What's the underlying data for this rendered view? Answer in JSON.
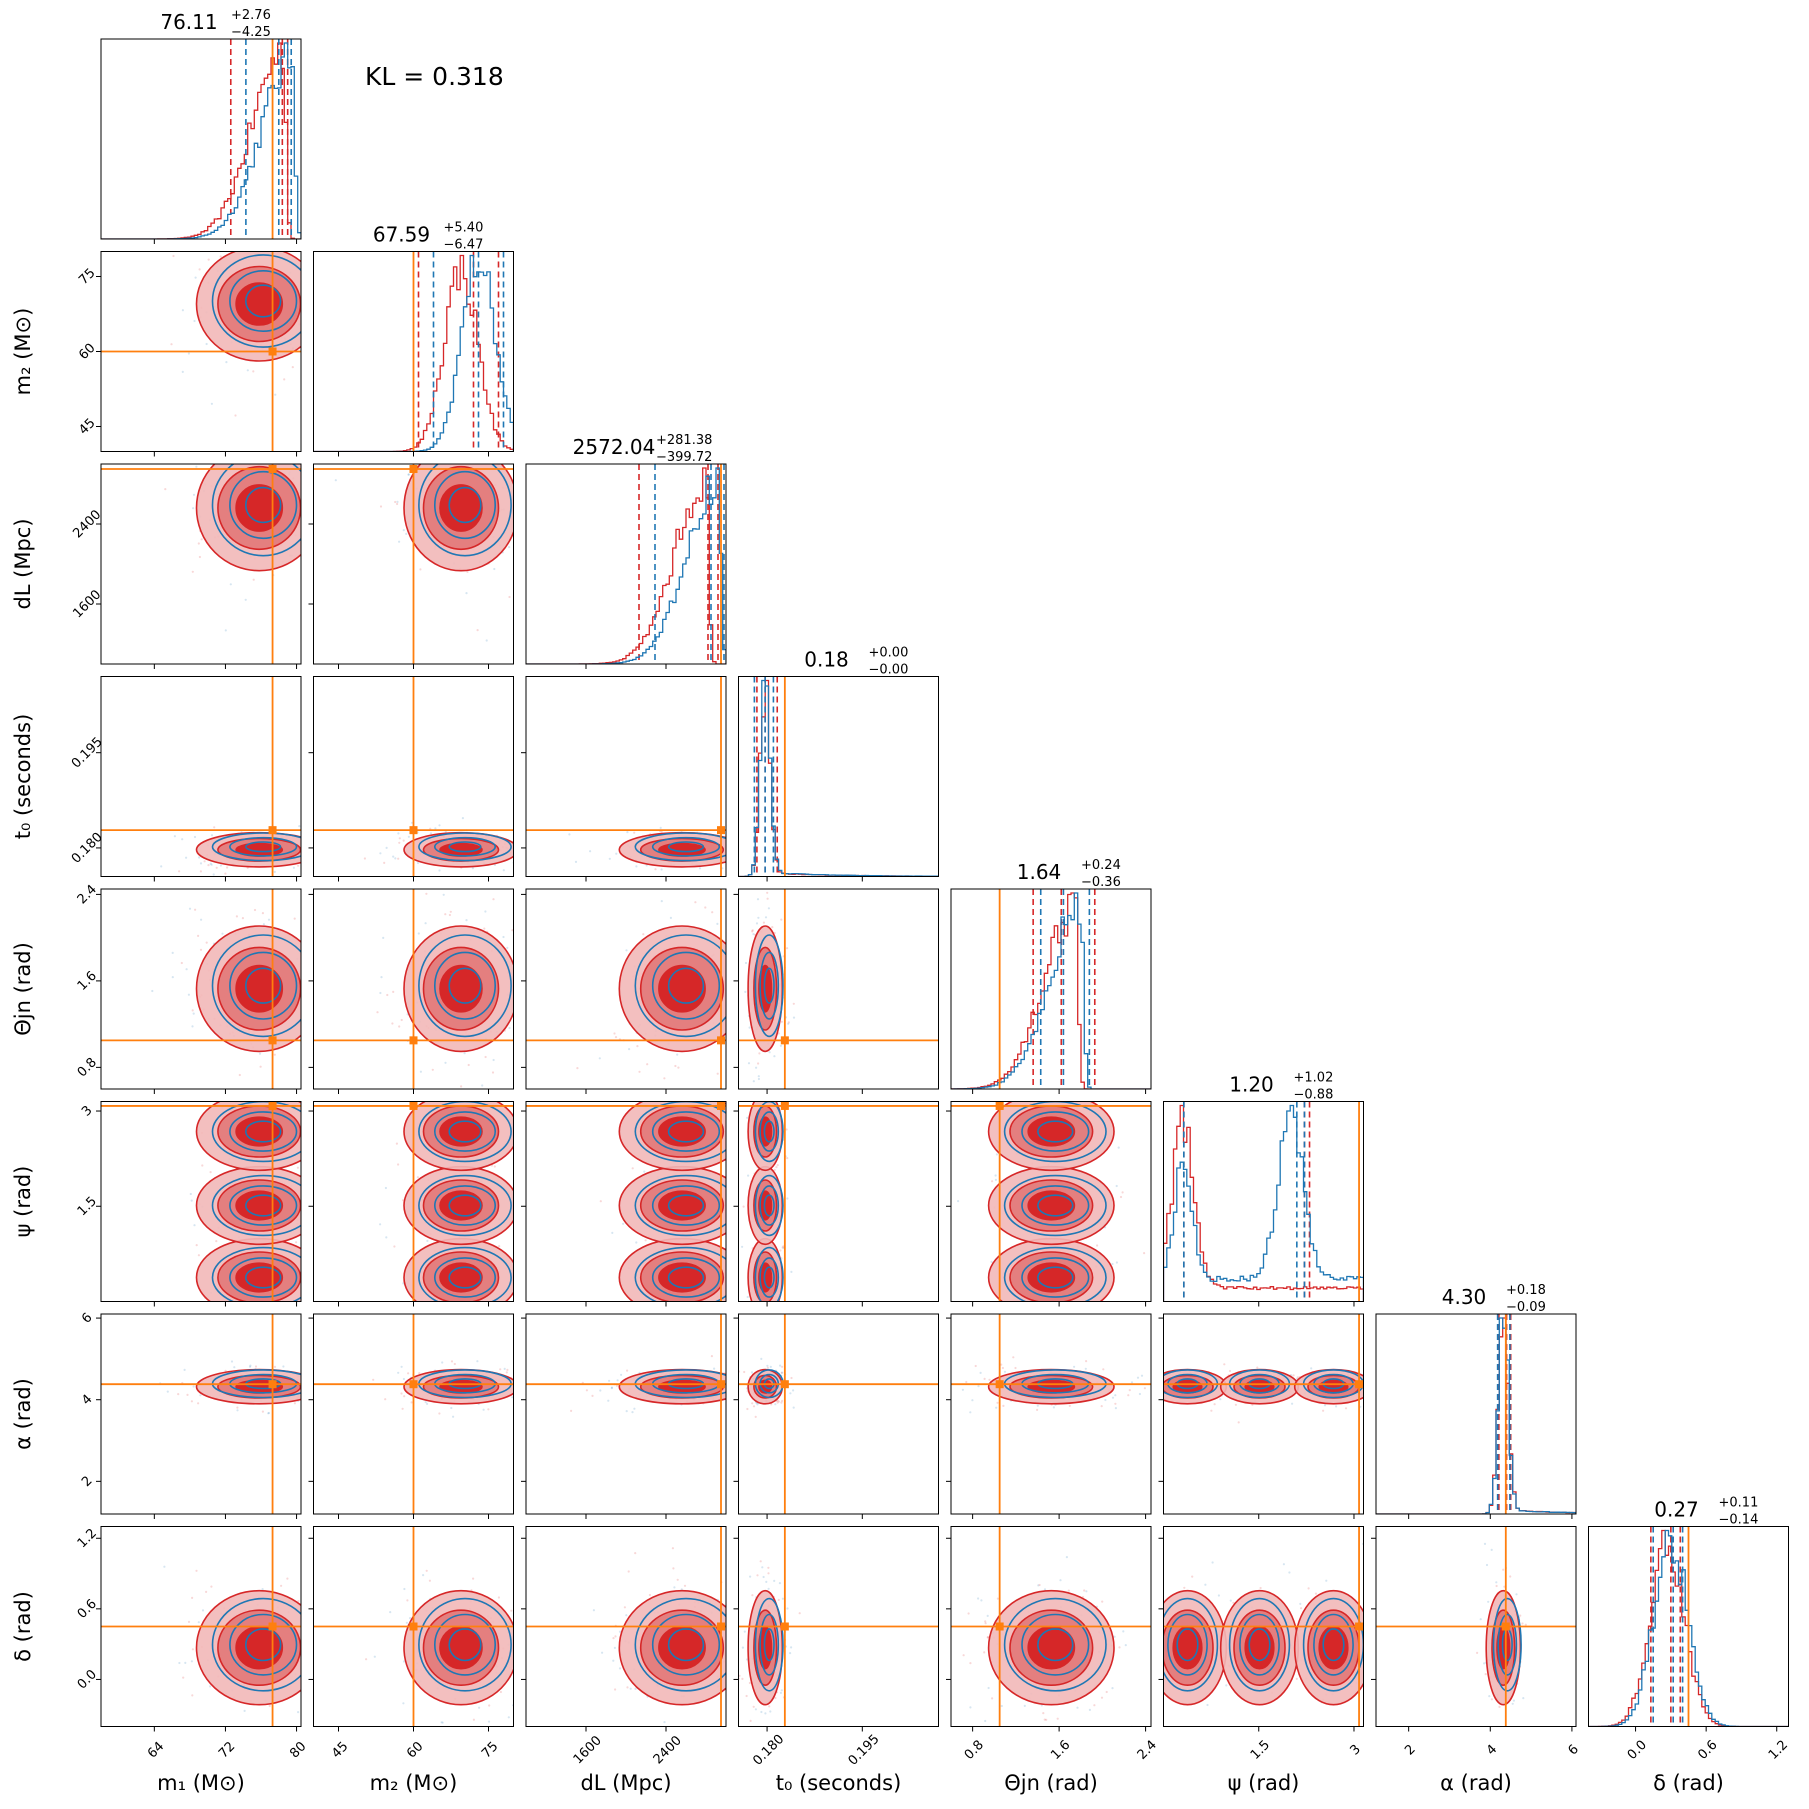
{
  "kl_text": "KL = 0.318",
  "chart_data": {
    "type": "corner",
    "colors": {
      "blue": "#1f77b4",
      "red": "#d62728",
      "truth": "#ff7f0e"
    },
    "parameters": [
      {
        "key": "m1",
        "label": "m_1 (M⊙)",
        "axis_label": "m₁ (M⊙)",
        "range": [
          58,
          80.5
        ],
        "ticks": [
          64,
          72,
          80
        ],
        "truth": 77.3,
        "title": {
          "median": "76.11",
          "plus": "+2.76",
          "minus": "−4.25"
        },
        "quantiles": {
          "red": [
            72.6,
            78.4,
            79.0
          ],
          "blue": [
            74.3,
            78.0,
            79.4
          ]
        },
        "peak_red": 78.5,
        "peak_blue": 79.5,
        "skew": "left"
      },
      {
        "key": "m2",
        "label": "m_2 (M⊙)",
        "axis_label": "m₂ (M⊙)",
        "range": [
          40,
          80
        ],
        "ticks": [
          45,
          60,
          75
        ],
        "truth": 60,
        "title": {
          "median": "67.59",
          "plus": "+5.40",
          "minus": "−6.47"
        },
        "quantiles": {
          "red": [
            61.0,
            72.0,
            77.0
          ],
          "blue": [
            64.0,
            73.0,
            78.0
          ]
        },
        "peak_red": 69.5,
        "peak_blue": 73.0,
        "skew": "mid"
      },
      {
        "key": "dL",
        "label": "d_L (Mpc)",
        "axis_label": "dL (Mpc)",
        "range": [
          1000,
          3000
        ],
        "ticks": [
          1600,
          2400
        ],
        "truth": 2950,
        "title": {
          "median": "2572.04",
          "plus": "+281.38",
          "minus": "−399.72"
        },
        "quantiles": {
          "red": [
            2130,
            2820,
            2920
          ],
          "blue": [
            2290,
            2850,
            2980
          ]
        },
        "peak_red": 2800,
        "peak_blue": 2920,
        "skew": "left"
      },
      {
        "key": "t0",
        "label": "t_0 (seconds)",
        "axis_label": "t₀ (seconds)",
        "range": [
          0.1755,
          0.207
        ],
        "ticks": [
          0.18,
          0.195
        ],
        "tick_labels": [
          "0.180",
          "0.195"
        ],
        "truth": 0.1828,
        "title": {
          "median": "0.18",
          "plus": "+0.00",
          "minus": "−0.00"
        },
        "quantiles": {
          "red": [
            0.1784,
            0.1797,
            0.1816
          ],
          "blue": [
            0.178,
            0.1797,
            0.181
          ]
        },
        "peak_red": 0.1797,
        "peak_blue": 0.1797,
        "skew": "narrow"
      },
      {
        "key": "theta_jn",
        "label": "Θ_jn (rad)",
        "axis_label": "Θjn (rad)",
        "range": [
          0.6,
          2.45
        ],
        "ticks": [
          0.8,
          1.6,
          2.4
        ],
        "truth": 1.05,
        "title": {
          "median": "1.64",
          "plus": "+0.24",
          "minus": "−0.36"
        },
        "quantiles": {
          "red": [
            1.36,
            1.62,
            1.93
          ],
          "blue": [
            1.43,
            1.64,
            1.88
          ]
        },
        "peak_red": 1.75,
        "peak_blue": 1.8,
        "skew": "left"
      },
      {
        "key": "psi",
        "label": "ψ (rad)",
        "axis_label": "ψ (rad)",
        "range": [
          0.0,
          3.15
        ],
        "ticks": [
          1.5,
          3.0
        ],
        "truth": 3.08,
        "title": {
          "median": "1.20",
          "plus": "+1.02",
          "minus": "−0.88"
        },
        "quantiles": {
          "red": [
            0.32,
            2.22,
            2.3
          ],
          "blue": [
            0.32,
            2.1,
            2.22
          ]
        },
        "peak_red": 0.3,
        "peak_blue": 2.0,
        "skew": "bimodal"
      },
      {
        "key": "alpha",
        "label": "α (rad)",
        "axis_label": "α (rad)",
        "range": [
          1.2,
          6.1
        ],
        "ticks": [
          2,
          4,
          6
        ],
        "truth": 4.38,
        "title": {
          "median": "4.30",
          "plus": "+0.18",
          "minus": "−0.09"
        },
        "quantiles": {
          "red": [
            4.21,
            4.4,
            4.5
          ],
          "blue": [
            4.18,
            4.38,
            4.48
          ]
        },
        "peak_red": 4.32,
        "peak_blue": 4.32,
        "skew": "narrow"
      },
      {
        "key": "delta",
        "label": "δ (rad)",
        "axis_label": "δ (rad)",
        "range": [
          -0.4,
          1.3
        ],
        "ticks": [
          0.0,
          0.6,
          1.2
        ],
        "tick_labels": [
          "0.0",
          "0.6",
          "1.2"
        ],
        "truth": 0.45,
        "title": {
          "median": "0.27",
          "plus": "+0.11",
          "minus": "−0.14"
        },
        "quantiles": {
          "red": [
            0.13,
            0.3,
            0.38
          ],
          "blue": [
            0.15,
            0.32,
            0.4
          ]
        },
        "peak_red": 0.27,
        "peak_blue": 0.3,
        "skew": "mid"
      }
    ]
  }
}
